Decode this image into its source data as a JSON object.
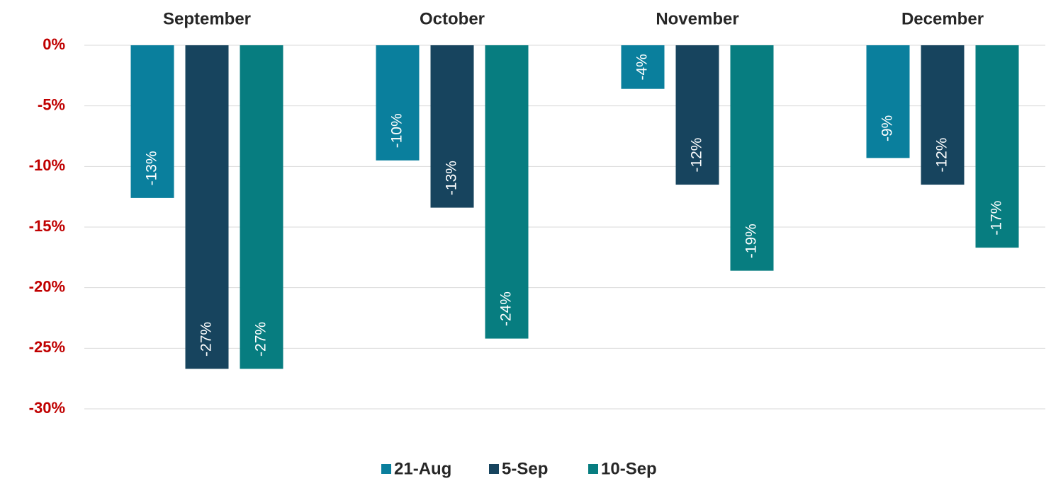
{
  "chart_data": {
    "type": "bar",
    "categories": [
      "September",
      "October",
      "November",
      "December"
    ],
    "series": [
      {
        "name": "21-Aug",
        "color": "#0a7f9d",
        "values": [
          -12.6,
          -9.5,
          -3.6,
          -9.3
        ],
        "value_labels": [
          "-13%",
          "-10%",
          "-4%",
          "-9%"
        ]
      },
      {
        "name": "5-Sep",
        "color": "#17445e",
        "values": [
          -26.7,
          -13.4,
          -11.5,
          -11.5
        ],
        "value_labels": [
          "-27%",
          "-13%",
          "-12%",
          "-12%"
        ]
      },
      {
        "name": "10-Sep",
        "color": "#077d80",
        "values": [
          -26.7,
          -24.2,
          -18.6,
          -16.7
        ],
        "value_labels": [
          "-27%",
          "-24%",
          "-19%",
          "-17%"
        ]
      }
    ],
    "ylim": [
      -30,
      0
    ],
    "yticks": [
      {
        "value": 0,
        "label": "0%"
      },
      {
        "value": -5,
        "label": "-5%"
      },
      {
        "value": -10,
        "label": "-10%"
      },
      {
        "value": -15,
        "label": "-15%"
      },
      {
        "value": -20,
        "label": "-20%"
      },
      {
        "value": -25,
        "label": "-25%"
      },
      {
        "value": -30,
        "label": "-30%"
      }
    ],
    "grid": true,
    "legend": "bottom"
  }
}
